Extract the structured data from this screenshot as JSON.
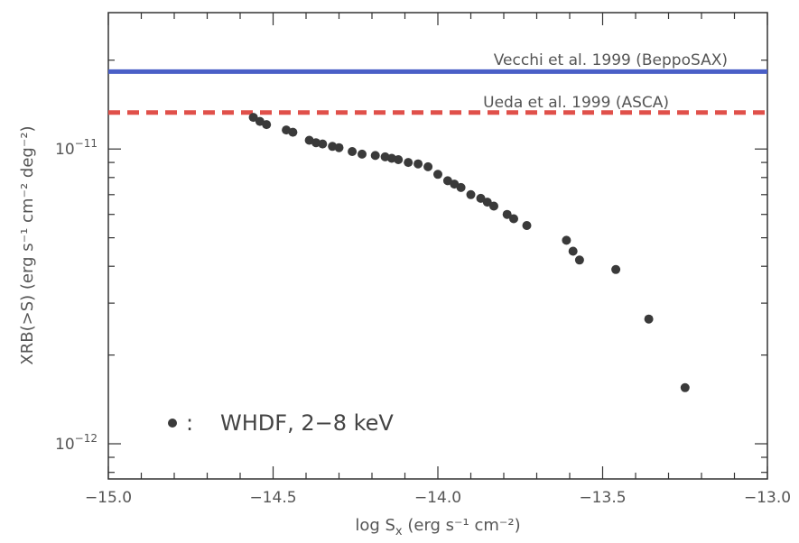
{
  "chart_data": {
    "type": "scatter",
    "xlabel": "log S",
    "xlabel_sub": "x",
    "xlabel_units": " (erg s⁻¹ cm⁻²)",
    "ylabel": "XRB(>S) (erg s⁻¹ cm⁻² deg⁻²)",
    "xlim": [
      -15.0,
      -13.0
    ],
    "ylim": [
      7.6e-13,
      2.9e-11
    ],
    "yscale": "log",
    "x_ticks": [
      {
        "value": -15.0,
        "label": "−15.0"
      },
      {
        "value": -14.5,
        "label": "−14.5"
      },
      {
        "value": -14.0,
        "label": "−14.0"
      },
      {
        "value": -13.5,
        "label": "−13.5"
      },
      {
        "value": -13.0,
        "label": "−13.0"
      }
    ],
    "y_ticks": [
      {
        "value": 1e-11,
        "base": "10",
        "exp": "−11"
      },
      {
        "value": 1e-12,
        "base": "10",
        "exp": "−12"
      }
    ],
    "reference_lines": [
      {
        "label": "Vecchi et al. 1999 (BeppoSAX)",
        "y": 1.83e-11,
        "color": "#4a5fc7",
        "style": "solid"
      },
      {
        "label": "Ueda et al. 1999 (ASCA)",
        "y": 1.33e-11,
        "color": "#e0504a",
        "style": "dashed"
      }
    ],
    "series": [
      {
        "name": "WHDF, 2−8 keV",
        "marker_color": "#3a3a3a",
        "x": [
          -14.56,
          -14.54,
          -14.52,
          -14.46,
          -14.44,
          -14.39,
          -14.37,
          -14.35,
          -14.32,
          -14.3,
          -14.26,
          -14.23,
          -14.19,
          -14.16,
          -14.14,
          -14.12,
          -14.09,
          -14.06,
          -14.03,
          -14.0,
          -13.97,
          -13.95,
          -13.93,
          -13.9,
          -13.87,
          -13.85,
          -13.83,
          -13.79,
          -13.77,
          -13.73,
          -13.61,
          -13.59,
          -13.57,
          -13.46,
          -13.36,
          -13.25
        ],
        "y": [
          1.28e-11,
          1.24e-11,
          1.21e-11,
          1.16e-11,
          1.14e-11,
          1.07e-11,
          1.05e-11,
          1.04e-11,
          1.02e-11,
          1.01e-11,
          9.8e-12,
          9.6e-12,
          9.5e-12,
          9.4e-12,
          9.3e-12,
          9.2e-12,
          9e-12,
          8.9e-12,
          8.7e-12,
          8.2e-12,
          7.8e-12,
          7.6e-12,
          7.4e-12,
          7e-12,
          6.8e-12,
          6.6e-12,
          6.4e-12,
          6e-12,
          5.8e-12,
          5.5e-12,
          4.9e-12,
          4.5e-12,
          4.2e-12,
          3.9e-12,
          2.65e-12,
          1.55e-12
        ]
      }
    ],
    "legend": {
      "marker_label": ":",
      "text": "WHDF, 2−8 keV",
      "placement": "bottom-left"
    }
  }
}
